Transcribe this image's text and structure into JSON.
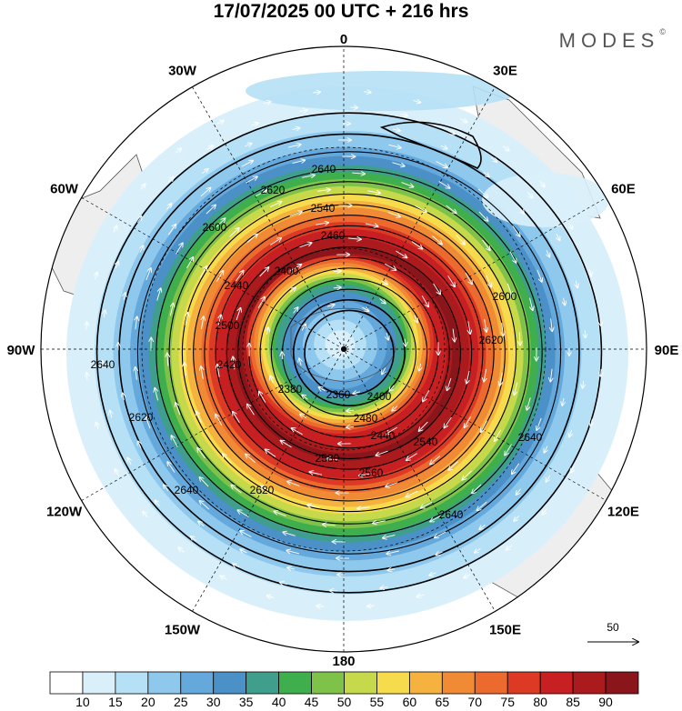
{
  "title": "17/07/2025  00 UTC  + 216 hrs",
  "brand": {
    "name": "MODES",
    "mark": "©"
  },
  "longitude_labels": [
    {
      "text": "0",
      "lon": 0
    },
    {
      "text": "30E",
      "lon": 30
    },
    {
      "text": "60E",
      "lon": 60
    },
    {
      "text": "90E",
      "lon": 90
    },
    {
      "text": "120E",
      "lon": 120
    },
    {
      "text": "150E",
      "lon": 150
    },
    {
      "text": "180",
      "lon": 180
    },
    {
      "text": "150W",
      "lon": -150
    },
    {
      "text": "120W",
      "lon": -120
    },
    {
      "text": "90W",
      "lon": -90
    },
    {
      "text": "60W",
      "lon": -60
    },
    {
      "text": "30W",
      "lon": -30
    }
  ],
  "contour_labels": [
    "2640",
    "2620",
    "2600",
    "2580",
    "2560",
    "2540",
    "2500",
    "2480",
    "2460",
    "2440",
    "2420",
    "2400",
    "2380",
    "2360"
  ],
  "vector_reference": {
    "value": "50"
  },
  "colorbar": {
    "ticks": [
      "10",
      "15",
      "20",
      "25",
      "30",
      "35",
      "40",
      "45",
      "50",
      "55",
      "60",
      "65",
      "70",
      "75",
      "80",
      "85",
      "90"
    ],
    "colors": [
      "#ffffff",
      "#d9f0fb",
      "#b5e0f5",
      "#8ec8ec",
      "#64a8dc",
      "#4c90c8",
      "#3f9f8c",
      "#3fae4c",
      "#7ec24a",
      "#c6d94a",
      "#f6dc4d",
      "#f6b23f",
      "#f08a34",
      "#ec6a2e",
      "#dd3a26",
      "#c81f22",
      "#ab1a1d",
      "#8a151b"
    ]
  },
  "colors": {
    "land": "#eeeeee",
    "coast": "#555555",
    "contour": "#000000",
    "vector": "#ffffff"
  }
}
